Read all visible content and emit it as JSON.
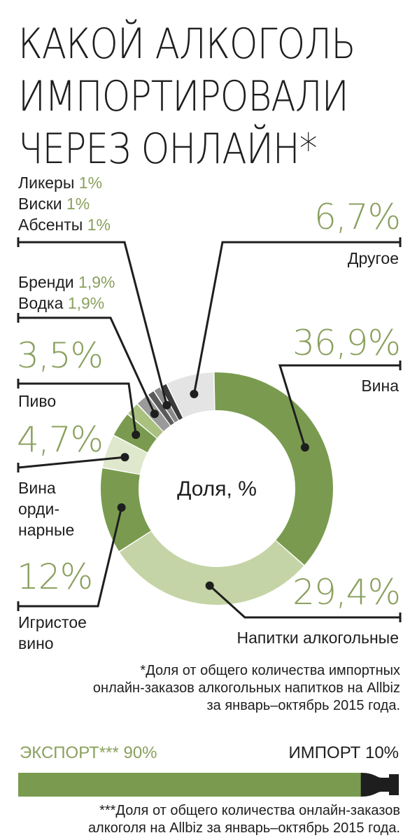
{
  "title_lines": [
    "КАКОЙ АЛКОГОЛЬ",
    "ИМПОРТИРОВАЛИ",
    "ЧЕРЕЗ ОНЛАЙН*"
  ],
  "labels": {
    "liqueur": "Ликеры",
    "liqueur_pct": "1%",
    "whisky": "Виски",
    "whisky_pct": "1%",
    "absinthe": "Абсенты",
    "absinthe_pct": "1%",
    "brandy": "Бренди",
    "brandy_pct": "1,9%",
    "vodka": "Водка",
    "vodka_pct": "1,9%",
    "beer_pct": "3,5%",
    "beer": "Пиво",
    "ordinary_pct": "4,7%",
    "ordinary_lines": [
      "Вина",
      "орди-",
      "нарные"
    ],
    "sparkling_pct": "12%",
    "sparkling_lines": [
      "Игристое",
      "вино"
    ],
    "other_pct": "6,7%",
    "other": "Другое",
    "wine_pct": "36,9%",
    "wine": "Вина",
    "alcdrinks_pct": "29,4%",
    "alcdrinks": "Напитки алкогольные"
  },
  "center_label": "Доля, %",
  "footnote_lines": [
    "*Доля от общего количества импортных",
    "онлайн-заказов алкогольных напитков на Allbiz",
    "за январь–октябрь 2015 года."
  ],
  "export_label": "ЭКСПОРТ*** 90%",
  "import_label": "ИМПОРТ 10%",
  "footnote2_lines": [
    "***Доля от общего количества онлайн-заказов",
    "алкоголя на Allbiz за январь–октябрь 2015 года."
  ],
  "colors": {
    "green_dark": "#7a9b4f",
    "green_mid": "#a9c07f",
    "green_light": "#cfdcb4",
    "grey_mid": "#9a9a9a",
    "grey_dark": "#5a5a5a",
    "grey_light": "#e4e4e4",
    "text": "#1e1e1e",
    "accent_text": "#8aa05e"
  },
  "chart_data": [
    {
      "type": "pie",
      "title": "Доля, %",
      "categories": [
        "Вина",
        "Напитки алкогольные",
        "Игристое вино",
        "Вина ординарные",
        "Пиво",
        "Бренди",
        "Водка",
        "Абсенты",
        "Виски",
        "Ликеры",
        "Другое"
      ],
      "values": [
        36.9,
        29.4,
        12,
        4.7,
        3.5,
        1.9,
        1.9,
        1,
        1,
        1,
        6.7
      ],
      "colors": [
        "#7a9b4f",
        "#c5d4a6",
        "#7a9b4f",
        "#dfe7cc",
        "#7a9b4f",
        "#a9c07f",
        "#9a9a9a",
        "#5a5a5a",
        "#8a8a8a",
        "#3a3a3a",
        "#e4e4e4"
      ],
      "style": "donut"
    },
    {
      "type": "bar",
      "categories": [
        "ЭКСПОРТ",
        "ИМПОРТ"
      ],
      "values": [
        90,
        10
      ],
      "colors": [
        "#7a9b4f",
        "#1e1e1e"
      ],
      "style": "single stacked bottle-shaped bar"
    }
  ]
}
